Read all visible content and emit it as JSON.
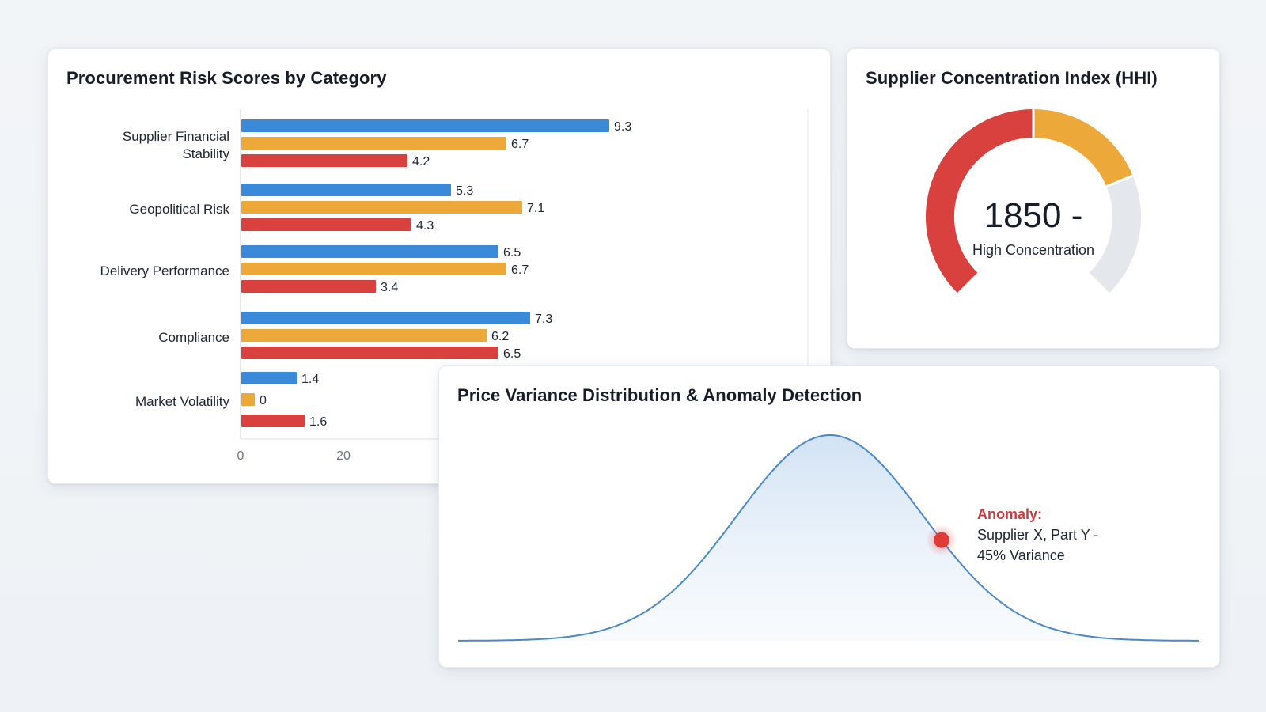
{
  "colors": {
    "blue": "#3b8ad9",
    "orange": "#eda83a",
    "red": "#d9413f",
    "gauge_track": "#e4e7eb",
    "curve": "#4a88c8",
    "anomaly": "#e03b36"
  },
  "bar_panel": {
    "title": "Procurement Risk Scores by Category"
  },
  "gauge_panel": {
    "title": "Supplier Concentration Index (HHI)",
    "value": "1850 -",
    "label": "High Concentration"
  },
  "distribution_panel": {
    "title": "Price Variance Distribution & Anomaly Detection",
    "anomaly_title": "Anomaly:",
    "anomaly_text": "Supplier X, Part Y - 45% Variance"
  },
  "chart_data": [
    {
      "type": "bar",
      "orientation": "horizontal",
      "title": "Procurement Risk Scores by Category",
      "categories": [
        [
          "Supplier Financial",
          "Stability"
        ],
        [
          "Geopolitical Risk"
        ],
        [
          "Delivery Performance"
        ],
        [
          "Compliance"
        ],
        [
          "Market Volatility"
        ]
      ],
      "series": [
        {
          "color": "#3b8ad9",
          "values": [
            9.3,
            5.3,
            6.5,
            7.3,
            1.4
          ]
        },
        {
          "color": "#eda83a",
          "values": [
            6.7,
            7.1,
            6.7,
            6.2,
            0
          ]
        },
        {
          "color": "#d9413f",
          "values": [
            4.2,
            4.3,
            3.4,
            6.5,
            1.6
          ]
        }
      ],
      "x_ticks_visible": [
        0,
        20
      ],
      "grid": false
    },
    {
      "type": "gauge",
      "title": "Supplier Concentration Index (HHI)",
      "value": 1850,
      "value_text": "1850 -",
      "label": "High Concentration",
      "segments": [
        {
          "color": "#d9413f",
          "fraction": 0.5
        },
        {
          "color": "#eda83a",
          "fraction": 0.25
        },
        {
          "color": "#e4e7eb",
          "fraction": 0.25
        }
      ]
    },
    {
      "type": "area",
      "title": "Price Variance Distribution & Anomaly Detection",
      "distribution": "normal",
      "anomaly": {
        "label": "Anomaly:",
        "text": "Supplier X, Part Y - 45% Variance"
      }
    }
  ]
}
